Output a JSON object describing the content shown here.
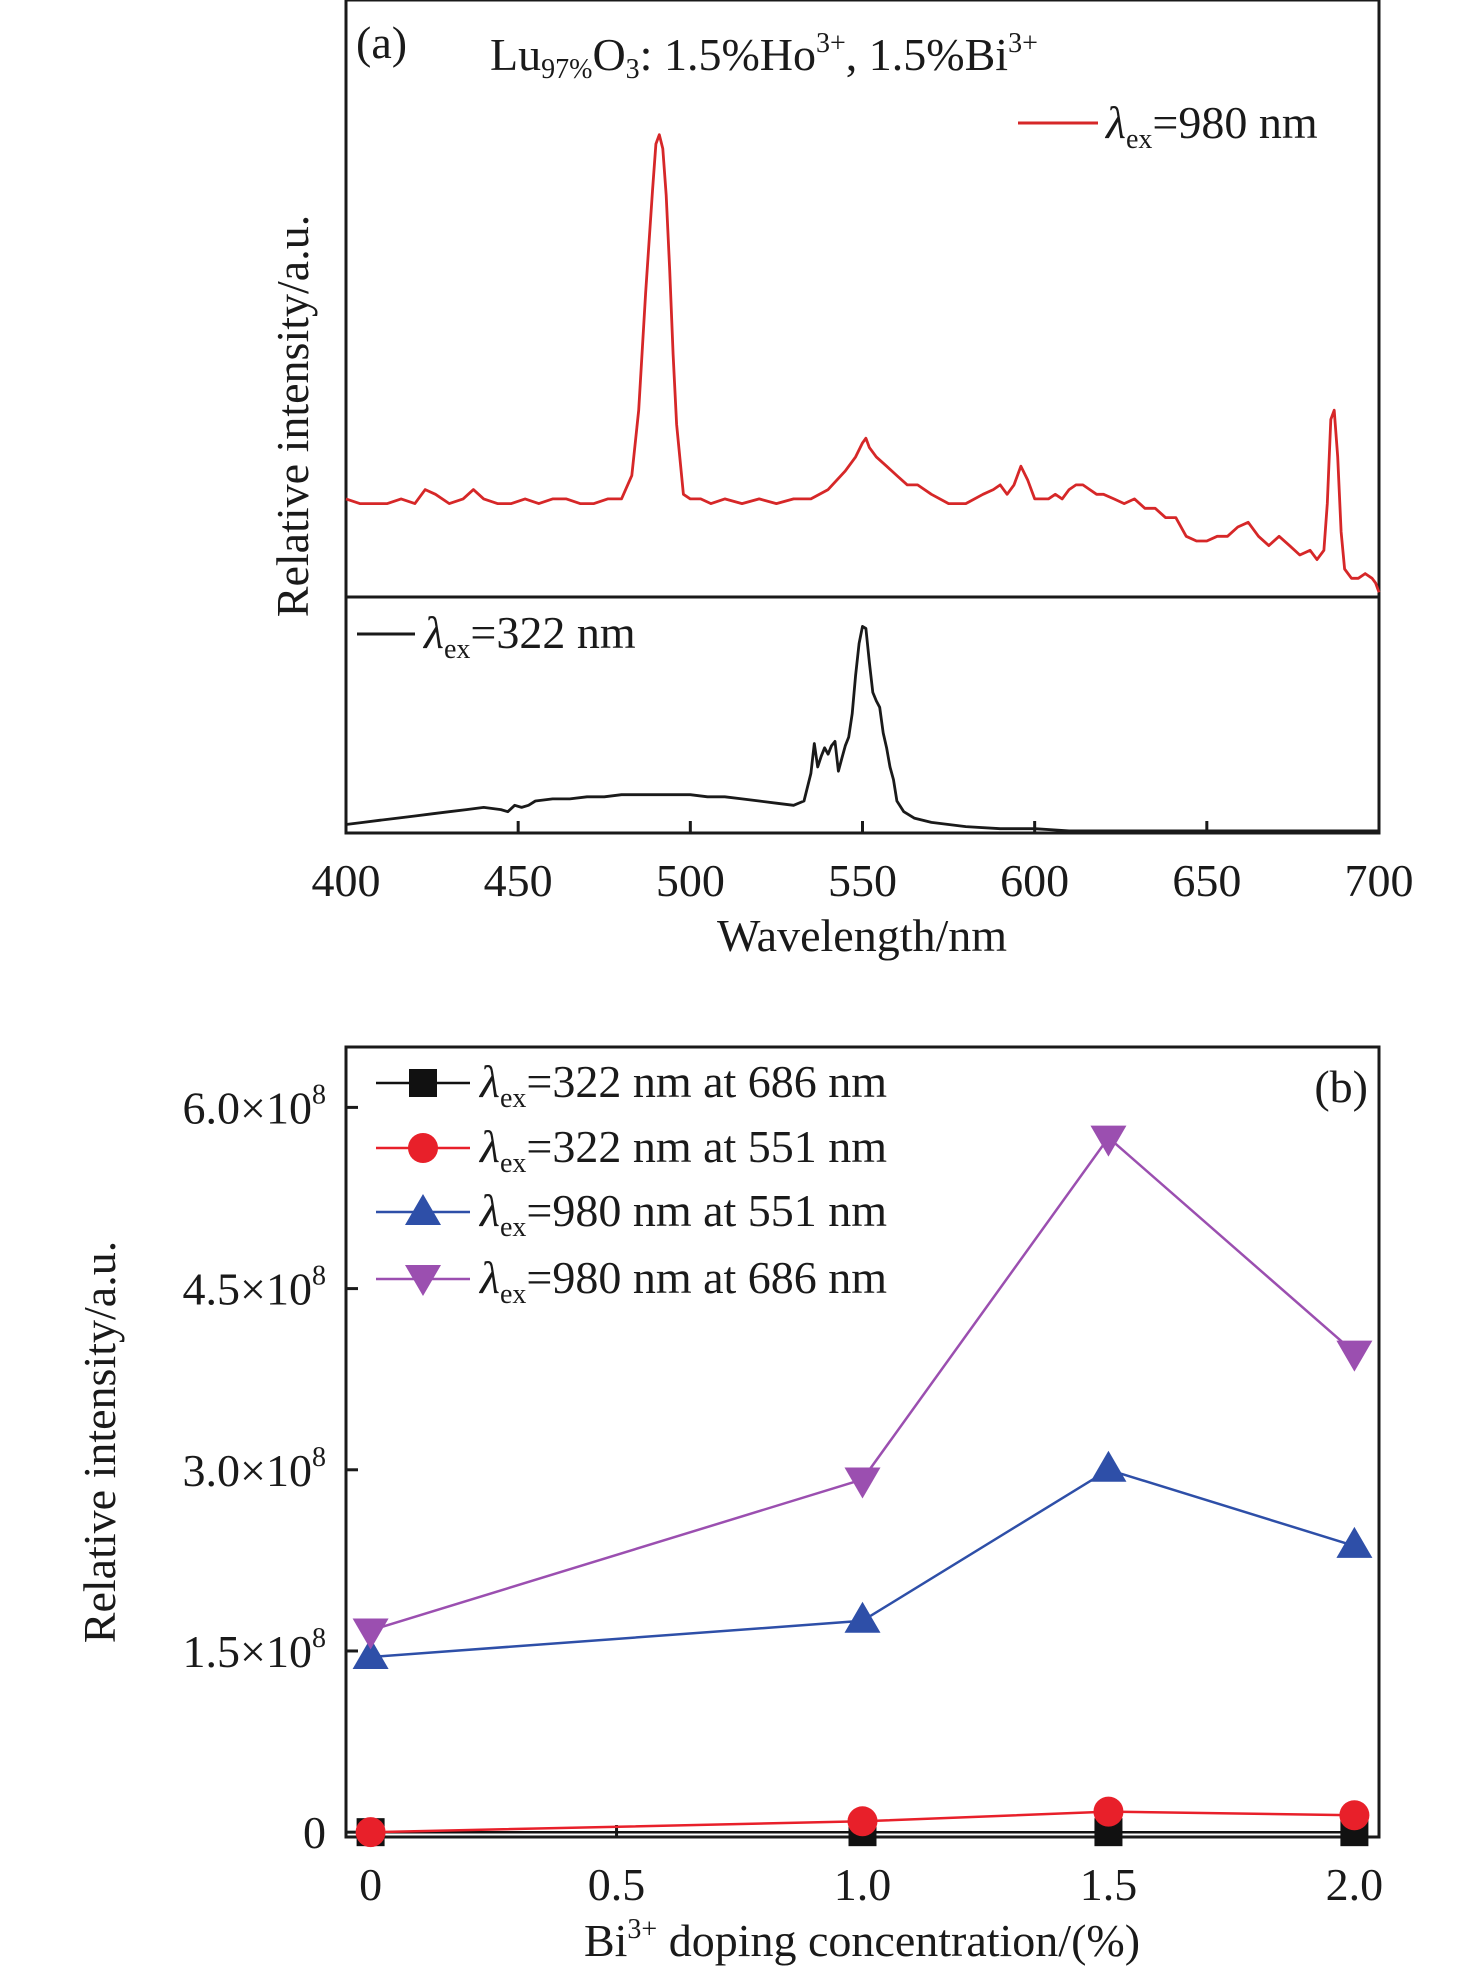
{
  "chart_data": [
    {
      "panel": "(a)",
      "type": "line",
      "title_parts": {
        "base1": "Lu",
        "sub1": "97%",
        "base2": "O",
        "sub2": "3",
        "mid": ": 1.5%Ho",
        "sup1": "3+",
        "mid2": ", 1.5%Bi",
        "sup2": "3+"
      },
      "xlabel": "Wavelength/nm",
      "ylabel": "Relative intensity/a.u.",
      "xlim": [
        400,
        700
      ],
      "xticks": [
        400,
        450,
        500,
        550,
        600,
        650,
        700
      ],
      "grid": false,
      "series": [
        {
          "name": "λex=980 nm",
          "legend": {
            "symbol": "λ",
            "sub": "ex",
            "rest": "=980 nm"
          },
          "color": "#d62728",
          "ylim": [
            0,
            1
          ],
          "x": [
            400,
            404,
            408,
            412,
            416,
            420,
            423,
            426,
            430,
            434,
            437,
            440,
            444,
            448,
            452,
            456,
            460,
            464,
            468,
            472,
            476,
            480,
            483,
            485,
            487,
            489,
            490,
            491,
            492,
            493,
            494,
            495,
            496,
            498,
            500,
            503,
            506,
            510,
            515,
            520,
            525,
            530,
            535,
            540,
            545,
            548,
            550,
            551,
            552,
            554,
            557,
            560,
            563,
            566,
            570,
            575,
            580,
            585,
            588,
            590,
            592,
            594,
            596,
            598,
            600,
            602,
            604,
            606,
            608,
            610,
            612,
            614,
            616,
            618,
            620,
            623,
            626,
            629,
            632,
            635,
            638,
            641,
            644,
            647,
            650,
            653,
            656,
            659,
            662,
            665,
            668,
            671,
            674,
            677,
            680,
            682,
            684,
            685,
            686,
            687,
            688,
            689,
            690,
            692,
            694,
            696,
            698,
            699,
            700
          ],
          "y": [
            0.21,
            0.2,
            0.2,
            0.2,
            0.21,
            0.2,
            0.23,
            0.22,
            0.2,
            0.21,
            0.23,
            0.21,
            0.2,
            0.2,
            0.21,
            0.2,
            0.21,
            0.21,
            0.2,
            0.2,
            0.21,
            0.21,
            0.26,
            0.4,
            0.65,
            0.87,
            0.97,
            0.99,
            0.96,
            0.86,
            0.7,
            0.52,
            0.37,
            0.22,
            0.21,
            0.21,
            0.2,
            0.21,
            0.2,
            0.21,
            0.2,
            0.21,
            0.21,
            0.23,
            0.27,
            0.3,
            0.33,
            0.34,
            0.32,
            0.3,
            0.28,
            0.26,
            0.24,
            0.24,
            0.22,
            0.2,
            0.2,
            0.22,
            0.23,
            0.24,
            0.22,
            0.24,
            0.28,
            0.25,
            0.21,
            0.21,
            0.21,
            0.22,
            0.21,
            0.23,
            0.24,
            0.24,
            0.23,
            0.22,
            0.22,
            0.21,
            0.2,
            0.21,
            0.19,
            0.19,
            0.17,
            0.17,
            0.13,
            0.12,
            0.12,
            0.13,
            0.13,
            0.15,
            0.16,
            0.13,
            0.11,
            0.13,
            0.11,
            0.09,
            0.1,
            0.08,
            0.1,
            0.2,
            0.38,
            0.4,
            0.3,
            0.14,
            0.06,
            0.04,
            0.04,
            0.05,
            0.04,
            0.03,
            0.01
          ]
        },
        {
          "name": "λex=322 nm",
          "legend": {
            "symbol": "λ",
            "sub": "ex",
            "rest": "=322 nm"
          },
          "color": "#1a1a1a",
          "ylim": [
            0,
            1
          ],
          "x": [
            400,
            405,
            410,
            415,
            420,
            425,
            430,
            435,
            440,
            445,
            447,
            449,
            451,
            453,
            455,
            460,
            465,
            470,
            475,
            480,
            485,
            490,
            495,
            500,
            505,
            510,
            515,
            520,
            525,
            530,
            533,
            535,
            536,
            537,
            538,
            539,
            540,
            541,
            542,
            543,
            544,
            545,
            546,
            547,
            548,
            549,
            550,
            551,
            552,
            553,
            554,
            555,
            556,
            557,
            558,
            559,
            560,
            562,
            565,
            570,
            575,
            580,
            590,
            600,
            610,
            620,
            630,
            640,
            650,
            660,
            670,
            680,
            690,
            700
          ],
          "y": [
            0.04,
            0.05,
            0.06,
            0.07,
            0.08,
            0.09,
            0.1,
            0.11,
            0.12,
            0.11,
            0.1,
            0.13,
            0.12,
            0.13,
            0.15,
            0.16,
            0.16,
            0.17,
            0.17,
            0.18,
            0.18,
            0.18,
            0.18,
            0.18,
            0.17,
            0.17,
            0.16,
            0.15,
            0.14,
            0.13,
            0.15,
            0.28,
            0.42,
            0.31,
            0.36,
            0.4,
            0.37,
            0.41,
            0.43,
            0.29,
            0.35,
            0.41,
            0.45,
            0.56,
            0.74,
            0.89,
            0.97,
            0.96,
            0.8,
            0.66,
            0.62,
            0.59,
            0.47,
            0.4,
            0.31,
            0.25,
            0.15,
            0.1,
            0.07,
            0.05,
            0.04,
            0.03,
            0.02,
            0.02,
            0.01,
            0.01,
            0.01,
            0.01,
            0.01,
            0.01,
            0.01,
            0.01,
            0.01,
            0.01
          ]
        }
      ]
    },
    {
      "panel": "(b)",
      "type": "line",
      "xlabel": {
        "base1": "Bi",
        "sup": "3+",
        "rest": " doping concentration/(%)"
      },
      "ylabel": "Relative intensity/a.u.",
      "xlim": [
        -0.05,
        2.05
      ],
      "ylim": [
        -0.04,
        6.5
      ],
      "xticks": [
        0,
        0.5,
        1.0,
        1.5,
        2.0
      ],
      "xtick_labels": [
        "0",
        "0.5",
        "1.0",
        "1.5",
        "2.0"
      ],
      "yticks": [
        0,
        1.5,
        3.0,
        4.5,
        6.0
      ],
      "ytick_labels": [
        {
          "mant": "0",
          "exp": ""
        },
        {
          "mant": "1.5×10",
          "exp": "8"
        },
        {
          "mant": "3.0×10",
          "exp": "8"
        },
        {
          "mant": "4.5×10",
          "exp": "8"
        },
        {
          "mant": "6.0×10",
          "exp": "8"
        }
      ],
      "grid": false,
      "legend_position": "top-left",
      "x": [
        0,
        1.0,
        1.5,
        2.0
      ],
      "series": [
        {
          "name": "λex=322 nm at 686 nm",
          "legend": {
            "symbol": "λ",
            "sub": "ex",
            "rest": "=322 nm at 686 nm"
          },
          "color": "#111111",
          "marker": "square",
          "values": [
            0.0,
            0.0,
            0.0,
            0.0
          ]
        },
        {
          "name": "λex=322 nm at 551 nm",
          "legend": {
            "symbol": "λ",
            "sub": "ex",
            "rest": "=322 nm at 551 nm"
          },
          "color": "#e8202a",
          "marker": "circle",
          "values": [
            0.0,
            0.09,
            0.17,
            0.14
          ]
        },
        {
          "name": "λex=980 nm at 551 nm",
          "legend": {
            "symbol": "λ",
            "sub": "ex",
            "rest": "=980 nm at 551 nm"
          },
          "color": "#2e4fa8",
          "marker": "triangle-up",
          "values": [
            1.45,
            1.75,
            3.0,
            2.37
          ]
        },
        {
          "name": "λex=980 nm at 686 nm",
          "legend": {
            "symbol": "λ",
            "sub": "ex",
            "rest": "=980 nm at 686 nm"
          },
          "color": "#9b4fb0",
          "marker": "triangle-down",
          "values": [
            1.67,
            2.92,
            5.75,
            3.97
          ]
        }
      ]
    }
  ]
}
